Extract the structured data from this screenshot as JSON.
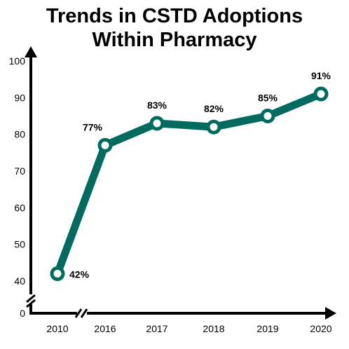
{
  "chart_data": {
    "type": "line",
    "title_lines": [
      "Trends in CSTD Adoptions",
      "Within Pharmacy"
    ],
    "categories": [
      "2010",
      "2016",
      "2017",
      "2018",
      "2019",
      "2020"
    ],
    "values": [
      42,
      77,
      83,
      82,
      85,
      91
    ],
    "data_labels": [
      "42%",
      "77%",
      "83%",
      "82%",
      "85%",
      "91%"
    ],
    "y_ticks": [
      "0",
      "40",
      "50",
      "60",
      "70",
      "80",
      "90",
      "100"
    ],
    "y_tick_values": [
      0,
      40,
      50,
      60,
      70,
      80,
      90,
      100
    ],
    "ylim": [
      40,
      100
    ],
    "y_axis_break": true,
    "x_axis_break_after": "2010",
    "grid": false,
    "colors": {
      "line": "#006b5e",
      "marker_fill": "#ffffff",
      "axis": "#000000"
    }
  }
}
